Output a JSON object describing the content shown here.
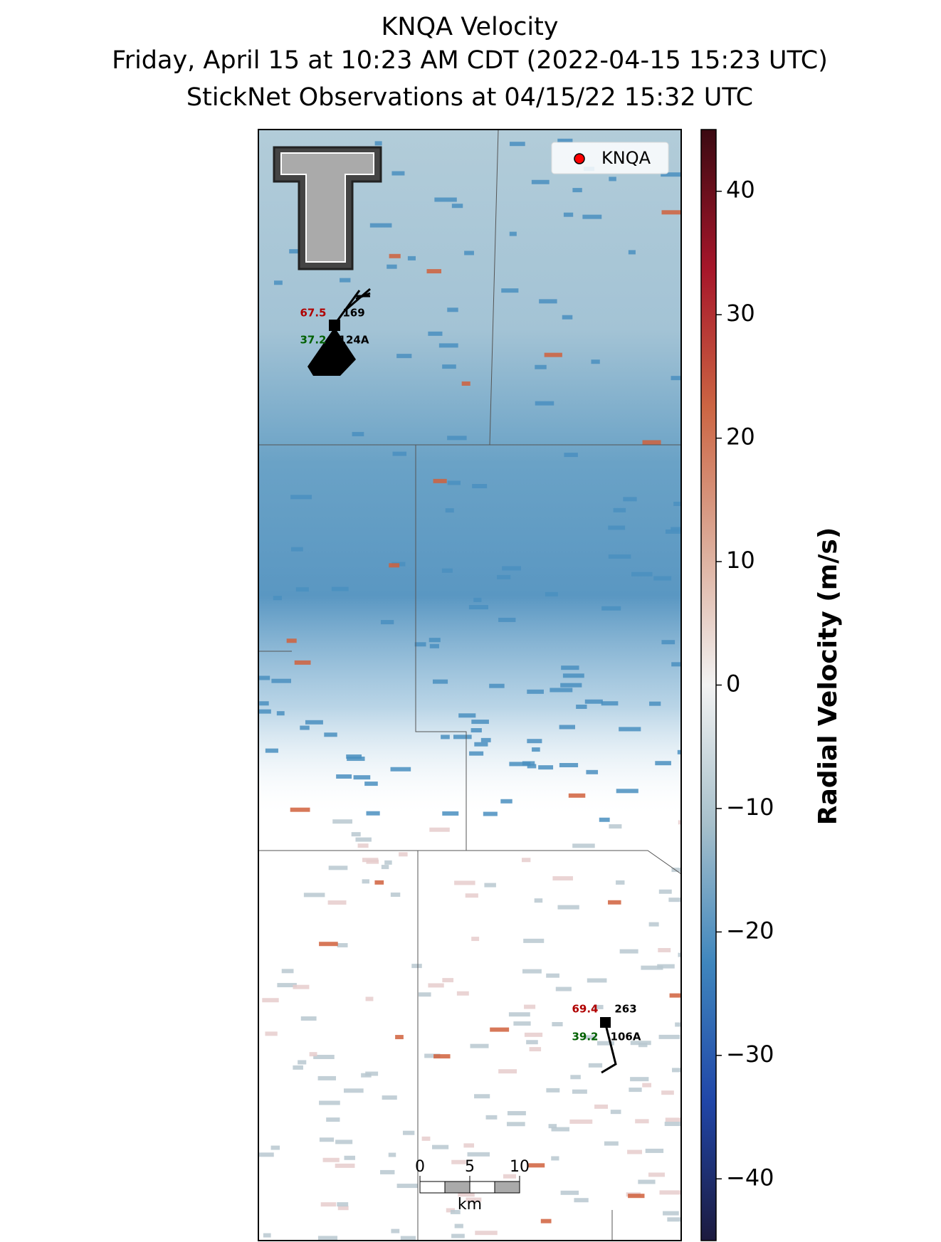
{
  "header": {
    "title": [
      "KNQA Velocity",
      "Friday, April 15 at 10:23 AM CDT (2022-04-15 15:23 UTC)",
      "StickNet Observations at 04/15/22 15:32 UTC"
    ]
  },
  "colorbar": {
    "label": "Radial Velocity (m/s)",
    "ylim": [
      -45,
      45
    ],
    "yticks": [
      {
        "value": -40,
        "label": "−40"
      },
      {
        "value": -30,
        "label": "−30"
      },
      {
        "value": -20,
        "label": "−20"
      },
      {
        "value": -10,
        "label": "−10"
      },
      0,
      10,
      20,
      30,
      40
    ],
    "colors": [
      "#1c1a3e",
      "#2046a8",
      "#3f86bd",
      "#a7c0cb",
      "#f2f2f2",
      "#dcab98",
      "#cc6543",
      "#a6162a",
      "#3b0a12"
    ]
  },
  "legend": {
    "label": "KNQA",
    "color": "#ff0000",
    "loc": "upper right"
  },
  "stations": [
    {
      "temperature": 67.5,
      "direction": 169,
      "dewpoint": 37.2,
      "id": "124A"
    },
    {
      "temperature": 69.4,
      "direction": 263,
      "dewpoint": 39.2,
      "id": "106A"
    }
  ],
  "scale_bar": {
    "ticks": [
      0,
      5,
      10
    ],
    "unit": "km"
  }
}
